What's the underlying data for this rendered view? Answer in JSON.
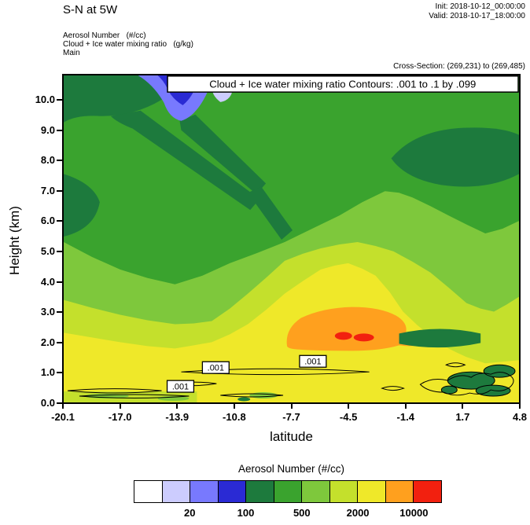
{
  "header": {
    "title": "S-N at 5W",
    "init": "Init: 2018-10-12_00:00:00",
    "valid": "Valid: 2018-10-17_18:00:00",
    "fields": [
      "Aerosol Number   (#/cc)",
      "Cloud + Ice water mixing ratio   (g/kg)",
      "Main"
    ],
    "cross_section": "Cross-Section: (269,231) to (269,485)"
  },
  "chart_data": {
    "type": "heatmap",
    "title": "Cloud + Ice water mixing ratio Contours: .001 to .1 by .099",
    "xlabel": "latitude",
    "ylabel": "Height (km)",
    "x_ticks": [
      "-20.1",
      "-17.0",
      "-13.9",
      "-10.8",
      "-7.7",
      "-4.5",
      "-1.4",
      "1.7",
      "4.8"
    ],
    "y_ticks": [
      "0.0",
      "1.0",
      "2.0",
      "3.0",
      "4.0",
      "5.0",
      "6.0",
      "7.0",
      "8.0",
      "9.0",
      "10.0"
    ],
    "xlim": [
      -20.1,
      4.8
    ],
    "ylim": [
      0,
      10.8
    ],
    "grid": false,
    "fill_variable": "Aerosol Number (#/cc)",
    "contour_variable": "Cloud + Ice water mixing ratio (g/kg)",
    "contour_levels_text": ".001 to .1 by .099",
    "contour_labels": [
      ".001",
      ".001",
      ".001"
    ],
    "colorbar": {
      "title": "Aerosol Number  (#/cc)",
      "colors": [
        "#ffffff",
        "#ccccfe",
        "#7879fe",
        "#2a2ad4",
        "#1d7a3d",
        "#3aa32e",
        "#7ec83c",
        "#c4e02c",
        "#efe829",
        "#ffa01e",
        "#f2200f"
      ],
      "tick_labels": [
        "20",
        "100",
        "500",
        "2000",
        "10000"
      ],
      "approx_color_ranges": [
        "<10",
        "10-20",
        "20-50",
        "50-100",
        "100-200",
        "200-500",
        "500-1000",
        "1000-2000",
        "2000-5000",
        "5000-10000",
        ">10000"
      ]
    },
    "estimated_field": {
      "units": "#/cc",
      "latitudes": [
        -20,
        -17,
        -14,
        -11,
        -8,
        -5,
        -2,
        1,
        4
      ],
      "heights_km": [
        0.5,
        1,
        2,
        3,
        4,
        5,
        6,
        7,
        8,
        9,
        10
      ],
      "values": [
        [
          1500,
          3000,
          3000,
          3000,
          3000,
          3000,
          3000,
          3000,
          700
        ],
        [
          3000,
          3000,
          3000,
          3000,
          3000,
          3000,
          3000,
          1500,
          150
        ],
        [
          3000,
          3000,
          3000,
          3000,
          3000,
          7000,
          3000,
          300,
          1500
        ],
        [
          1500,
          1500,
          1500,
          1500,
          3000,
          3000,
          3000,
          1500,
          1500
        ],
        [
          700,
          700,
          700,
          700,
          1500,
          1500,
          1500,
          1500,
          700
        ],
        [
          700,
          300,
          300,
          300,
          700,
          1500,
          1500,
          700,
          700
        ],
        [
          300,
          300,
          300,
          300,
          700,
          700,
          1500,
          700,
          700
        ],
        [
          300,
          300,
          300,
          300,
          300,
          700,
          700,
          300,
          300
        ],
        [
          300,
          300,
          300,
          300,
          300,
          300,
          300,
          150,
          150
        ],
        [
          300,
          150,
          150,
          300,
          300,
          300,
          300,
          150,
          150
        ],
        [
          150,
          150,
          30,
          70,
          300,
          300,
          300,
          300,
          150
        ]
      ],
      "local_maxima": [
        {
          "latitude": -5,
          "height_km": 2.1,
          "note": "small red spots >10000 #/cc"
        }
      ]
    }
  }
}
